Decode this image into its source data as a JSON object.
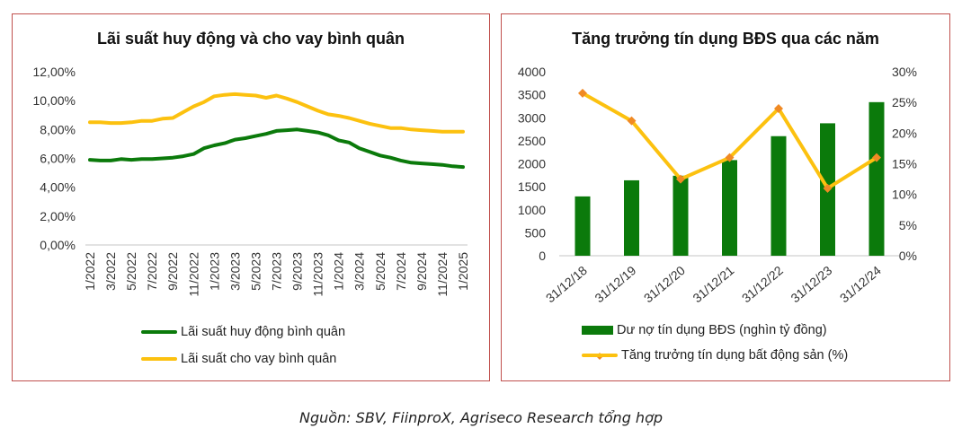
{
  "colors": {
    "green": "#0b7a0b",
    "yellow": "#fcc10f",
    "marker": "#f08a24",
    "border": "#c0504d",
    "axis": "#d9d9d9"
  },
  "left": {
    "title": "Lãi suất huy động và cho vay bình quân",
    "legend": [
      "Lãi suất huy động bình quân",
      "Lãi suất cho vay bình quân"
    ]
  },
  "right": {
    "title": "Tăng trưởng tín dụng BĐS qua các năm",
    "legend": [
      "Dư nợ tín dụng BĐS (nghìn tỷ đồng)",
      "Tăng trưởng tín dụng bất động sản (%)"
    ]
  },
  "source": "Nguồn: SBV, FiinproX, Agriseco Research tổng hợp",
  "chart_data": [
    {
      "type": "line",
      "title": "Lãi suất huy động và cho vay bình quân",
      "xlabel": "",
      "ylabel": "",
      "ylim": [
        0,
        12
      ],
      "yticks": [
        "0,00%",
        "2,00%",
        "4,00%",
        "6,00%",
        "8,00%",
        "10,00%",
        "12,00%"
      ],
      "xtick_labels": [
        "1/2022",
        "3/2022",
        "5/2022",
        "7/2022",
        "9/2022",
        "11/2022",
        "1/2023",
        "3/2023",
        "5/2023",
        "7/2023",
        "9/2023",
        "11/2023",
        "1/2024",
        "3/2024",
        "5/2024",
        "7/2024",
        "9/2024",
        "11/2024",
        "1/2025"
      ],
      "x": [
        "1/2022",
        "2/2022",
        "3/2022",
        "4/2022",
        "5/2022",
        "6/2022",
        "7/2022",
        "8/2022",
        "9/2022",
        "10/2022",
        "11/2022",
        "12/2022",
        "1/2023",
        "2/2023",
        "3/2023",
        "4/2023",
        "5/2023",
        "6/2023",
        "7/2023",
        "8/2023",
        "9/2023",
        "10/2023",
        "11/2023",
        "12/2023",
        "1/2024",
        "2/2024",
        "3/2024",
        "4/2024",
        "5/2024",
        "6/2024",
        "7/2024",
        "8/2024",
        "9/2024",
        "10/2024",
        "11/2024",
        "12/2024",
        "1/2025"
      ],
      "series": [
        {
          "name": "Lãi suất huy động bình quân",
          "color": "#0b7a0b",
          "values": [
            5.9,
            5.85,
            5.85,
            5.95,
            5.9,
            5.95,
            5.95,
            6.0,
            6.05,
            6.15,
            6.3,
            6.7,
            6.9,
            7.05,
            7.3,
            7.4,
            7.55,
            7.7,
            7.9,
            7.95,
            8.0,
            7.9,
            7.8,
            7.6,
            7.25,
            7.1,
            6.7,
            6.45,
            6.2,
            6.05,
            5.85,
            5.7,
            5.65,
            5.6,
            5.55,
            5.45,
            5.4
          ]
        },
        {
          "name": "Lãi suất cho vay bình quân",
          "color": "#fcc10f",
          "values": [
            8.5,
            8.5,
            8.45,
            8.45,
            8.5,
            8.6,
            8.6,
            8.75,
            8.8,
            9.2,
            9.6,
            9.9,
            10.3,
            10.4,
            10.45,
            10.4,
            10.35,
            10.2,
            10.35,
            10.15,
            9.9,
            9.6,
            9.3,
            9.05,
            8.95,
            8.8,
            8.6,
            8.4,
            8.25,
            8.1,
            8.1,
            8.0,
            7.95,
            7.9,
            7.85,
            7.85,
            7.85
          ]
        }
      ],
      "legend_position": "bottom"
    },
    {
      "type": "bar",
      "title": "Tăng trưởng tín dụng BĐS qua các năm",
      "categories": [
        "31/12/18",
        "31/12/19",
        "31/12/20",
        "31/12/21",
        "31/12/22",
        "31/12/23",
        "31/12/24"
      ],
      "ylim": [
        0,
        4000
      ],
      "yticks": [
        0,
        500,
        1000,
        1500,
        2000,
        2500,
        3000,
        3500,
        4000
      ],
      "y2lim": [
        0,
        30
      ],
      "y2ticks": [
        "0%",
        "5%",
        "10%",
        "15%",
        "20%",
        "25%",
        "30%"
      ],
      "series": [
        {
          "name": "Dư nợ tín dụng BĐS (nghìn tỷ đồng)",
          "type": "bar",
          "axis": "left",
          "color": "#0b7a0b",
          "values": [
            1290,
            1640,
            1740,
            2080,
            2600,
            2880,
            3340
          ]
        },
        {
          "name": "Tăng trưởng tín dụng bất động sản (%)",
          "type": "line",
          "axis": "right",
          "color": "#fcc10f",
          "values": [
            26.5,
            22.0,
            12.5,
            16.0,
            24.0,
            11.0,
            16.0
          ]
        }
      ],
      "legend_position": "bottom"
    }
  ]
}
